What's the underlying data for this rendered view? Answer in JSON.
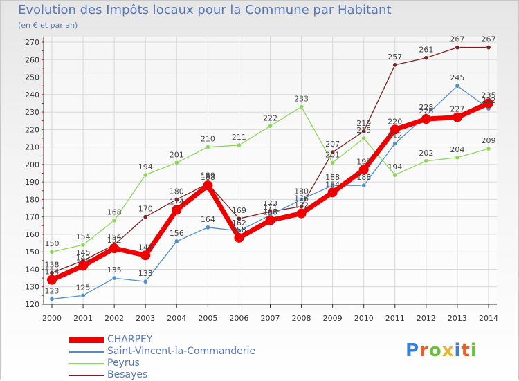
{
  "header": {
    "title": "Evolution des Impôts locaux pour la Commune par Habitant",
    "subtitle": "(en € et par an)"
  },
  "logo": {
    "text": "Proxiti",
    "letter_colors": [
      "#3a7fd6",
      "#e8612c",
      "#6cbf3f",
      "#e8b62c",
      "#3a7fd6",
      "#e8612c",
      "#6cbf3f"
    ]
  },
  "chart_data": {
    "type": "line",
    "title": "Evolution des Impôts locaux pour la Commune par Habitant",
    "subtitle": "(en € et par an)",
    "xlabel": "",
    "ylabel": "",
    "x": [
      "2000",
      "2001",
      "2002",
      "2003",
      "2004",
      "2005",
      "2006",
      "2007",
      "2008",
      "2009",
      "2010",
      "2011",
      "2012",
      "2013",
      "2014"
    ],
    "ylim": [
      120,
      270
    ],
    "yticks": [
      120,
      130,
      140,
      150,
      160,
      170,
      180,
      190,
      200,
      210,
      220,
      230,
      240,
      250,
      260,
      270
    ],
    "grid": true,
    "legend_position": "bottom-left",
    "series": [
      {
        "name": "CHARPEY",
        "color": "#ee0000",
        "values": [
          134,
          142,
          152,
          148,
          174,
          188,
          158,
          168,
          172,
          184,
          197,
          220,
          226,
          227,
          235
        ],
        "labels": [
          "134",
          "142",
          "152",
          "148",
          "174",
          "188",
          "158",
          "168",
          "172",
          "184",
          "197",
          "220",
          "226",
          "227",
          "235"
        ]
      },
      {
        "name": "Saint-Vincent-la-Commanderie",
        "color": "#4f8fc9",
        "values": [
          123,
          125,
          135,
          133,
          156,
          164,
          162,
          171,
          180,
          188,
          188,
          212,
          228,
          245,
          232
        ],
        "labels": [
          "123",
          "125",
          "135",
          "133",
          "156",
          "164",
          "162",
          "171",
          "180",
          "188",
          "188",
          "212",
          "228",
          "245",
          "232"
        ]
      },
      {
        "name": "Peyrus",
        "color": "#8dd65c",
        "values": [
          150,
          154,
          168,
          194,
          201,
          210,
          211,
          222,
          233,
          201,
          215,
          194,
          202,
          204,
          209
        ],
        "labels": [
          "150",
          "154",
          "168",
          "194",
          "201",
          "210",
          "211",
          "222",
          "233",
          "201",
          "215",
          "194",
          "202",
          "204",
          "209"
        ]
      },
      {
        "name": "Besayes",
        "color": "#7a2222",
        "values": [
          138,
          145,
          154,
          170,
          180,
          189,
          169,
          173,
          176,
          207,
          219,
          257,
          261,
          267,
          267
        ],
        "labels": [
          "138",
          "145",
          "154",
          "170",
          "180",
          "189",
          "169",
          "173",
          "176",
          "207",
          "219",
          "257",
          "261",
          "267",
          "267"
        ]
      }
    ]
  }
}
